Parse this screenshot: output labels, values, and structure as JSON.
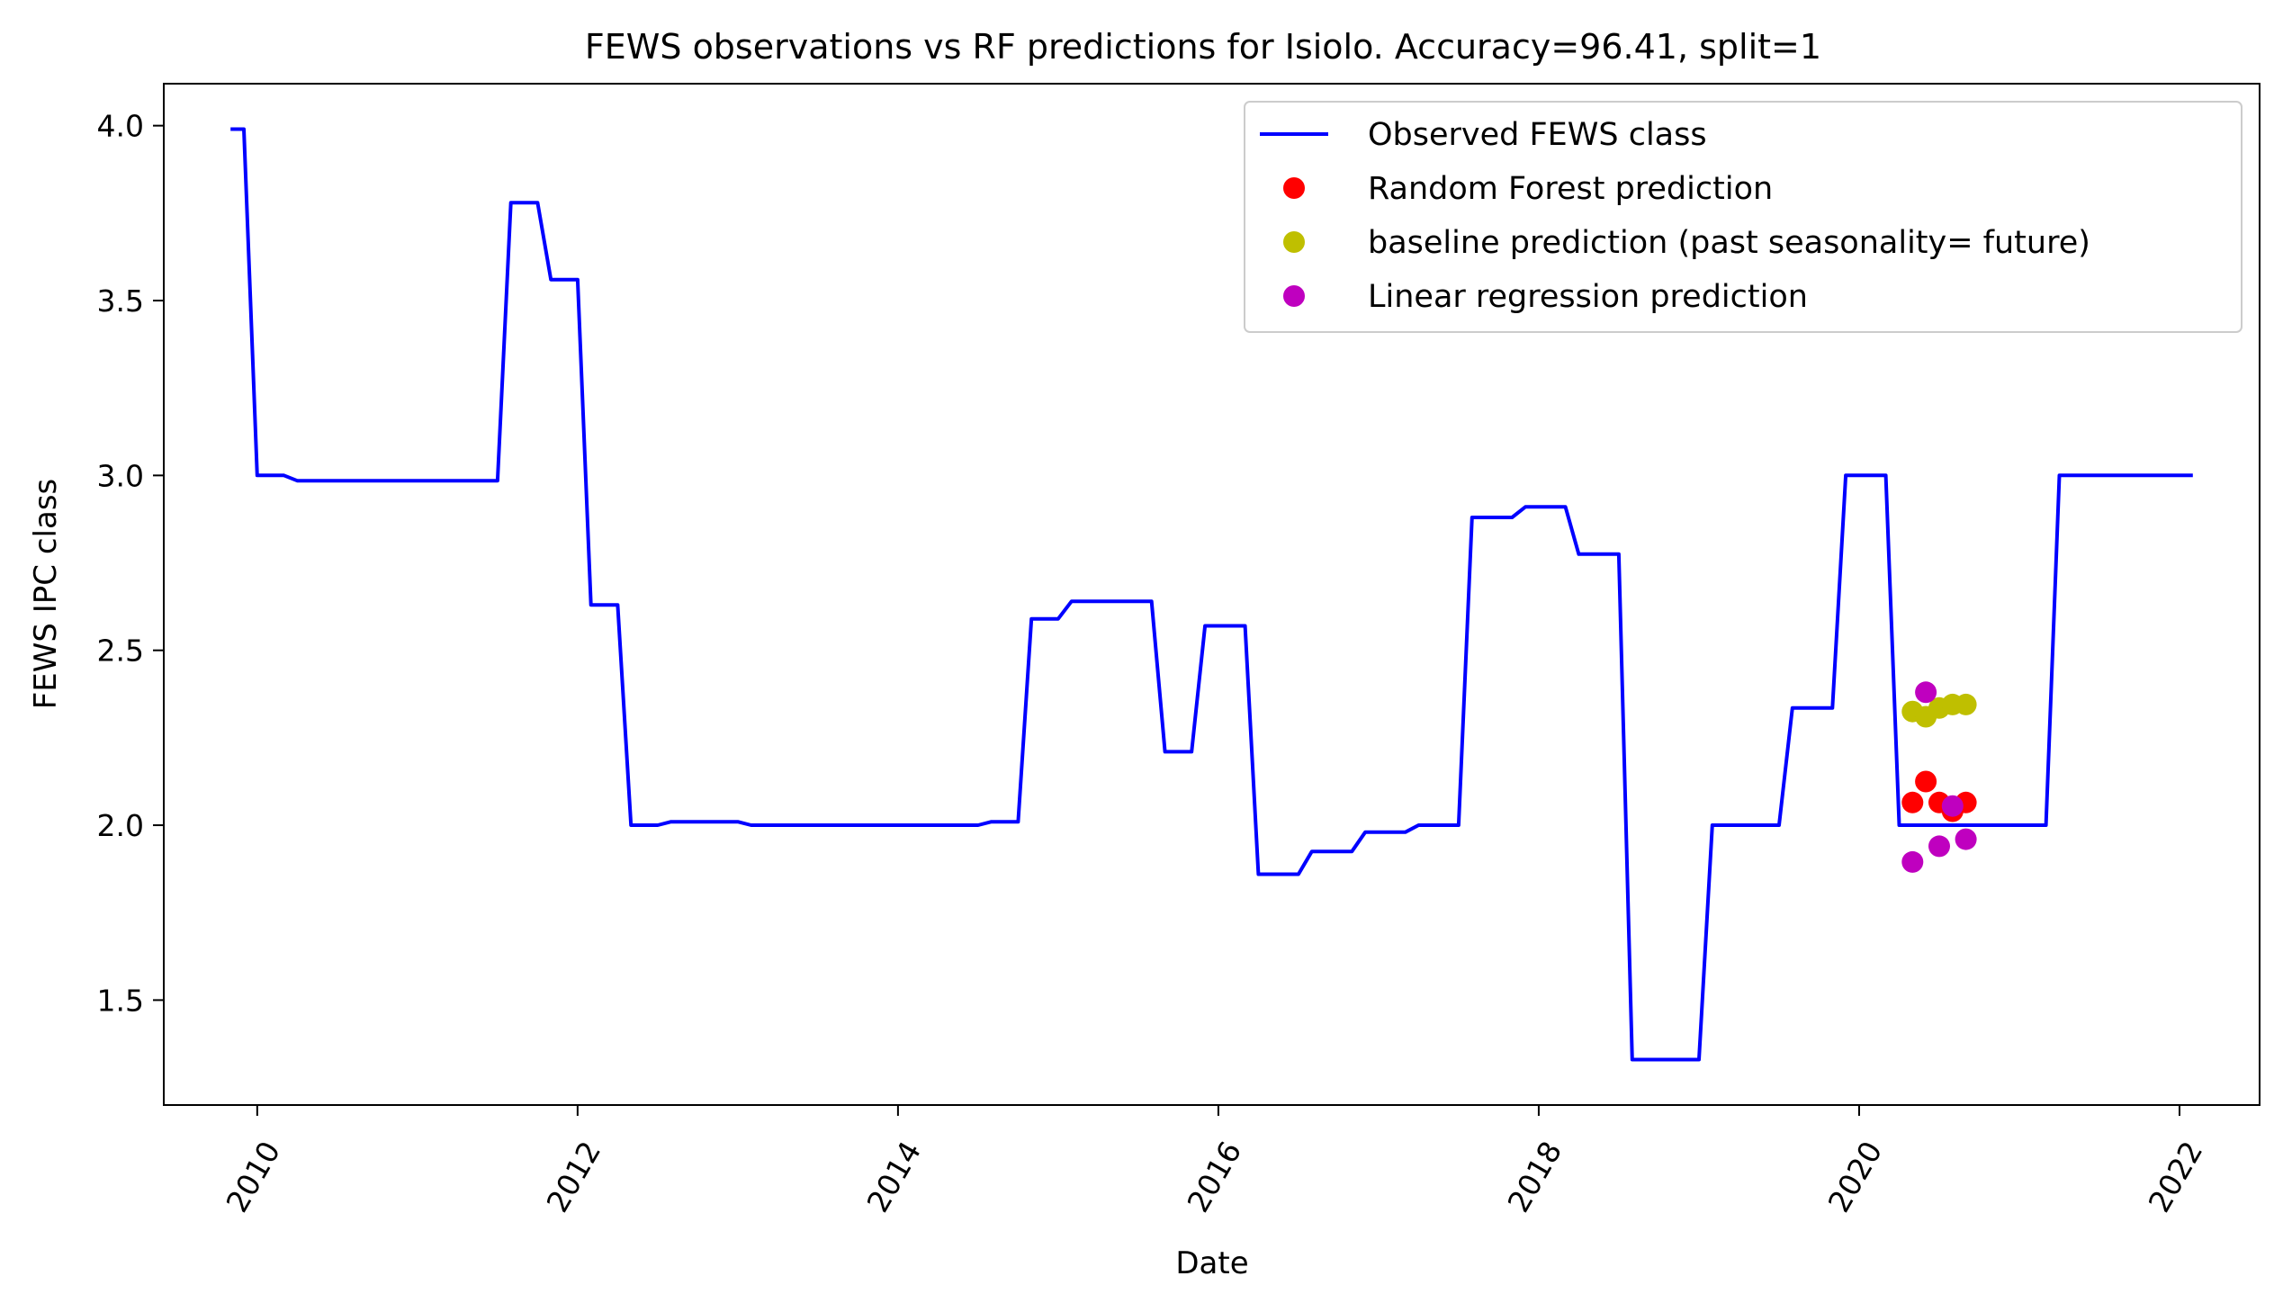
{
  "chart_data": {
    "type": "line",
    "title": "FEWS observations vs RF predictions for Isiolo. Accuracy=96.41, split=1",
    "xlabel": "Date",
    "ylabel": "FEWS IPC class",
    "xlim": [
      "2009-06",
      "2022-07"
    ],
    "ylim": [
      1.2,
      4.12
    ],
    "x_ticks": [
      "2010",
      "2012",
      "2014",
      "2016",
      "2018",
      "2020",
      "2022"
    ],
    "y_ticks": [
      "1.5",
      "2.0",
      "2.5",
      "3.0",
      "3.5",
      "4.0"
    ],
    "grid": false,
    "legend_position": "top-right",
    "series": [
      {
        "name": "Observed FEWS class",
        "style": "line",
        "color": "#0000ff",
        "points": [
          [
            "2009-11",
            3.99
          ],
          [
            "2009-12",
            3.99
          ],
          [
            "2010-01",
            3.0
          ],
          [
            "2010-02",
            3.0
          ],
          [
            "2010-03",
            3.0
          ],
          [
            "2010-04",
            2.985
          ],
          [
            "2011-07",
            2.985
          ],
          [
            "2011-08",
            3.78
          ],
          [
            "2011-10",
            3.78
          ],
          [
            "2011-11",
            3.56
          ],
          [
            "2012-01",
            3.56
          ],
          [
            "2012-02",
            2.63
          ],
          [
            "2012-04",
            2.63
          ],
          [
            "2012-05",
            2.0
          ],
          [
            "2012-07",
            2.0
          ],
          [
            "2012-08",
            2.01
          ],
          [
            "2013-01",
            2.01
          ],
          [
            "2013-02",
            2.0
          ],
          [
            "2014-07",
            2.0
          ],
          [
            "2014-08",
            2.01
          ],
          [
            "2014-10",
            2.01
          ],
          [
            "2014-11",
            2.59
          ],
          [
            "2015-01",
            2.59
          ],
          [
            "2015-02",
            2.64
          ],
          [
            "2015-08",
            2.64
          ],
          [
            "2015-09",
            2.21
          ],
          [
            "2015-11",
            2.21
          ],
          [
            "2015-12",
            2.57
          ],
          [
            "2016-03",
            2.57
          ],
          [
            "2016-04",
            1.86
          ],
          [
            "2016-07",
            1.86
          ],
          [
            "2016-08",
            1.925
          ],
          [
            "2016-11",
            1.925
          ],
          [
            "2016-12",
            1.98
          ],
          [
            "2017-03",
            1.98
          ],
          [
            "2017-04",
            2.0
          ],
          [
            "2017-07",
            2.0
          ],
          [
            "2017-08",
            2.88
          ],
          [
            "2017-11",
            2.88
          ],
          [
            "2017-12",
            2.91
          ],
          [
            "2018-03",
            2.91
          ],
          [
            "2018-04",
            2.775
          ],
          [
            "2018-07",
            2.775
          ],
          [
            "2018-08",
            1.33
          ],
          [
            "2019-01",
            1.33
          ],
          [
            "2019-02",
            2.0
          ],
          [
            "2019-07",
            2.0
          ],
          [
            "2019-08",
            2.335
          ],
          [
            "2019-11",
            2.335
          ],
          [
            "2019-12",
            3.0
          ],
          [
            "2020-03",
            3.0
          ],
          [
            "2020-04",
            2.0
          ],
          [
            "2021-03",
            2.0
          ],
          [
            "2021-04",
            3.0
          ],
          [
            "2022-02",
            3.0
          ]
        ]
      },
      {
        "name": "Random Forest prediction",
        "style": "scatter",
        "color": "#ff0000",
        "points": [
          [
            "2020-05",
            2.065
          ],
          [
            "2020-06",
            2.125
          ],
          [
            "2020-07",
            2.065
          ],
          [
            "2020-08",
            2.04
          ],
          [
            "2020-09",
            2.065
          ]
        ]
      },
      {
        "name": "baseline prediction (past seasonality= future)",
        "style": "scatter",
        "color": "#bfbf00",
        "points": [
          [
            "2020-05",
            2.325
          ],
          [
            "2020-06",
            2.31
          ],
          [
            "2020-07",
            2.335
          ],
          [
            "2020-08",
            2.345
          ],
          [
            "2020-09",
            2.345
          ]
        ]
      },
      {
        "name": "Linear regression prediction",
        "style": "scatter",
        "color": "#bf00bf",
        "points": [
          [
            "2020-05",
            1.895
          ],
          [
            "2020-06",
            2.38
          ],
          [
            "2020-07",
            1.94
          ],
          [
            "2020-08",
            2.055
          ],
          [
            "2020-09",
            1.96
          ]
        ]
      }
    ]
  }
}
